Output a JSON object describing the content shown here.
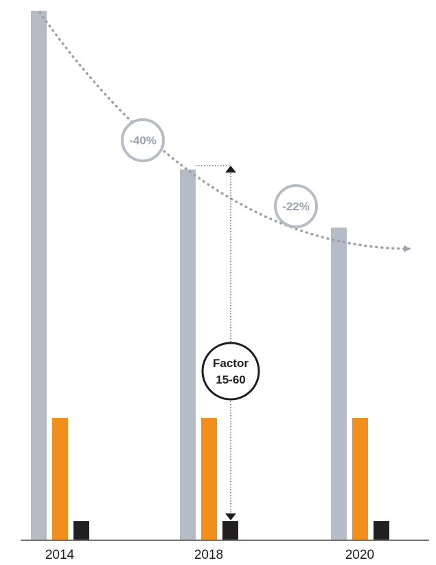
{
  "colors": {
    "grey": "#b5bcc5",
    "orange": "#f28e1c",
    "black": "#221f20",
    "trend": "#9aa3ad",
    "axis": "#1d1d1b"
  },
  "chart_data": {
    "type": "bar",
    "categories": [
      "2014",
      "2018",
      "2020"
    ],
    "series": [
      {
        "color": "grey",
        "values": [
          100,
          70,
          59
        ]
      },
      {
        "color": "orange",
        "values": [
          23,
          23,
          23
        ]
      },
      {
        "color": "black",
        "values": [
          3.5,
          3.5,
          3.5
        ]
      }
    ],
    "ylim": [
      0,
      101
    ],
    "grid": false,
    "annotations": {
      "trend_changes": [
        "-40%",
        "-22%"
      ],
      "factor": {
        "line1": "Factor",
        "line2": "15-60"
      }
    }
  }
}
